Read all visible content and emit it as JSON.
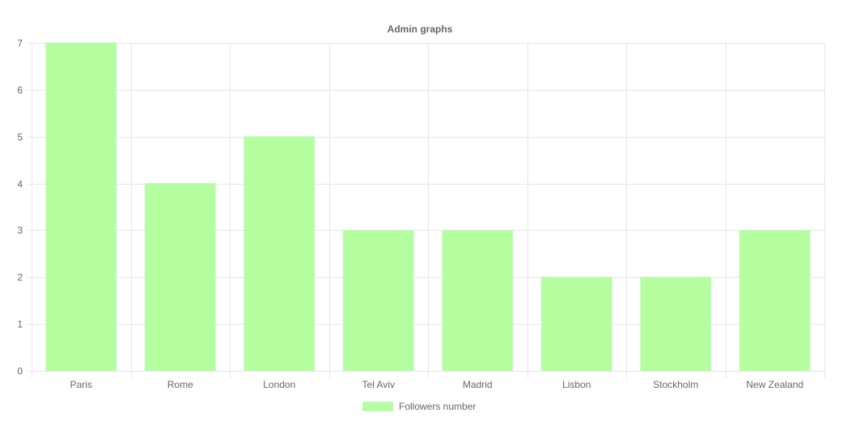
{
  "chart_data": {
    "type": "bar",
    "title": "Admin graphs",
    "xlabel": "",
    "ylabel": "",
    "categories": [
      "Paris",
      "Rome",
      "London",
      "Tel Aviv",
      "Madrid",
      "Lisbon",
      "Stockholm",
      "New Zealand"
    ],
    "series": [
      {
        "name": "Followers number",
        "values": [
          7,
          4,
          5,
          3,
          3,
          2,
          2,
          3
        ],
        "color": "#b5fe9f"
      }
    ],
    "ylim": [
      0,
      7
    ],
    "yticks": [
      "0",
      "1",
      "2",
      "3",
      "4",
      "5",
      "6",
      "7"
    ],
    "grid": true,
    "legend_position": "bottom"
  },
  "colors": {
    "grid": "#e6e6e6",
    "axis_text": "#666666",
    "title_text": "#666666"
  }
}
